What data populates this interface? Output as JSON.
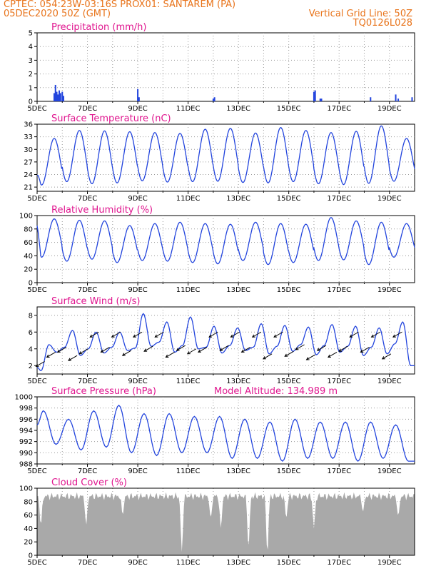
{
  "header": {
    "line1_left": "CPTEC:   054:23W-03:16S   PROX01: SANTAREM (PA)",
    "line2_left": "05DEC2020 50Z (GMT)",
    "line2_right": "Vertical Grid Line: 50Z",
    "line3_right": "TQ0126L028"
  },
  "colors": {
    "line": "#2244dd",
    "title": "#e0168f",
    "header": "#e8731a",
    "cloud": "#a9a9a9",
    "grid": "#9a9a9a"
  },
  "x_axis": {
    "day_labels": [
      "5DEC",
      "7DEC",
      "9DEC",
      "11DEC",
      "13DEC",
      "15DEC",
      "17DEC",
      "19DEC"
    ],
    "day_positions": [
      0,
      2,
      4,
      6,
      8,
      10,
      12,
      14
    ],
    "xlim": [
      0,
      15
    ]
  },
  "chart_data": [
    {
      "type": "bar",
      "title": "Precipitation (mm/h)",
      "ylim": [
        0,
        5
      ],
      "yticks": [
        0,
        1,
        2,
        3,
        4,
        5
      ],
      "x": [
        0.68,
        0.73,
        0.78,
        0.83,
        0.88,
        0.93,
        1.0,
        1.05,
        4.0,
        4.05,
        7.0,
        7.05,
        11.0,
        11.05,
        11.25,
        11.3,
        13.25,
        14.25,
        14.35,
        14.9
      ],
      "values": [
        0.6,
        1.2,
        0.7,
        0.5,
        0.8,
        0.6,
        0.7,
        0.4,
        0.9,
        0.3,
        0.2,
        0.3,
        0.7,
        0.8,
        0.2,
        0.2,
        0.3,
        0.5,
        0.2,
        0.3
      ]
    },
    {
      "type": "line",
      "title": "Surface Temperature (nC)",
      "ylim": [
        20,
        36
      ],
      "yticks": [
        21,
        24,
        27,
        30,
        33,
        36
      ],
      "min_values": [
        21.5,
        22.3,
        21.8,
        22.0,
        22.5,
        22.2,
        22.3,
        22.4,
        22.1,
        22.0,
        22.3,
        21.8,
        21.6,
        21.9,
        22.4
      ],
      "max_values": [
        32.6,
        34.5,
        34.4,
        34.2,
        34.0,
        33.8,
        34.8,
        35.0,
        33.9,
        35.2,
        34.5,
        34.0,
        34.3,
        35.6,
        32.6
      ],
      "start_value": 23.8
    },
    {
      "type": "line",
      "title": "Relative Humidity (%)",
      "ylim": [
        0,
        100
      ],
      "yticks": [
        0,
        20,
        40,
        60,
        80,
        100
      ],
      "min_values": [
        38,
        32,
        35,
        30,
        33,
        32,
        30,
        28,
        33,
        27,
        30,
        33,
        34,
        27,
        38
      ],
      "max_values": [
        95,
        93,
        92,
        85,
        88,
        90,
        88,
        87,
        90,
        88,
        87,
        97,
        92,
        90,
        88
      ],
      "start_value": 85
    },
    {
      "type": "line",
      "title": "Surface Wind (m/s)",
      "ylim": [
        1,
        9
      ],
      "yticks": [
        2,
        4,
        6,
        8
      ],
      "start_value": 1.8,
      "values": [
        1.4,
        4.5,
        3.6,
        4.2,
        6.2,
        3.2,
        4.0,
        6.0,
        3.5,
        4.2,
        6.0,
        3.8,
        4.1,
        8.2,
        4.3,
        4.8,
        7.2,
        3.6,
        4.4,
        7.8,
        4.0,
        4.2,
        6.7,
        3.5,
        4.4,
        6.5,
        3.8,
        4.2,
        7.0,
        3.4,
        4.3,
        6.8,
        3.7,
        4.5,
        6.6,
        3.3,
        4.4,
        6.9,
        3.6,
        4.3,
        6.7,
        3.2,
        4.2,
        6.5,
        3.4,
        4.6,
        7.2,
        2.0
      ],
      "arrow_direction_deg": 30
    },
    {
      "type": "line",
      "title": "Surface Pressure (hPa)",
      "annotation": "Model Altitude: 134.989  m",
      "ylim": [
        988,
        1000
      ],
      "yticks": [
        988,
        990,
        992,
        994,
        996,
        998,
        1000
      ],
      "start_value": 995,
      "values": [
        997.5,
        991.5,
        996.0,
        990.5,
        997.5,
        991.0,
        998.5,
        990.0,
        997.0,
        989.5,
        997.0,
        990.0,
        996.5,
        990.0,
        996.5,
        989.0,
        996.0,
        989.0,
        995.5,
        988.5,
        996.0,
        989.0,
        995.5,
        989.0,
        995.5,
        988.5,
        995.5,
        989.0,
        995.0,
        988.5
      ]
    },
    {
      "type": "area",
      "title": "Cloud Cover (%)",
      "ylim": [
        0,
        100
      ],
      "yticks": [
        0,
        20,
        40,
        60,
        80,
        100
      ],
      "typical_value": 88,
      "dips": [
        {
          "x": 0.15,
          "value": 45
        },
        {
          "x": 1.95,
          "value": 45
        },
        {
          "x": 3.4,
          "value": 60
        },
        {
          "x": 5.75,
          "value": 5
        },
        {
          "x": 6.9,
          "value": 55
        },
        {
          "x": 7.3,
          "value": 40
        },
        {
          "x": 8.4,
          "value": 10
        },
        {
          "x": 9.15,
          "value": 2
        },
        {
          "x": 9.9,
          "value": 55
        },
        {
          "x": 11.0,
          "value": 40
        },
        {
          "x": 12.95,
          "value": 65
        },
        {
          "x": 14.35,
          "value": 58
        }
      ]
    }
  ]
}
